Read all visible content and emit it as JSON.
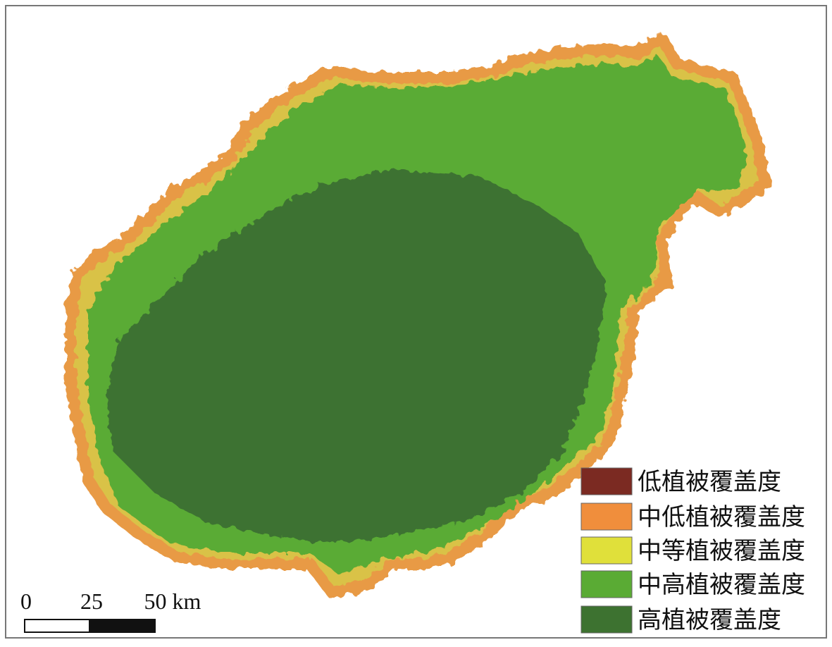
{
  "legend": {
    "items": [
      {
        "label": "低植被覆盖度",
        "color": "#7b2a22"
      },
      {
        "label": "中低植被覆盖度",
        "color": "#f08e3c"
      },
      {
        "label": "中等植被覆盖度",
        "color": "#e0e03a"
      },
      {
        "label": "中高植被覆盖度",
        "color": "#5aab34"
      },
      {
        "label": "高植被覆盖度",
        "color": "#3d7230"
      }
    ]
  },
  "scale_bar": {
    "labels": [
      "0",
      "25",
      "50 km"
    ]
  }
}
